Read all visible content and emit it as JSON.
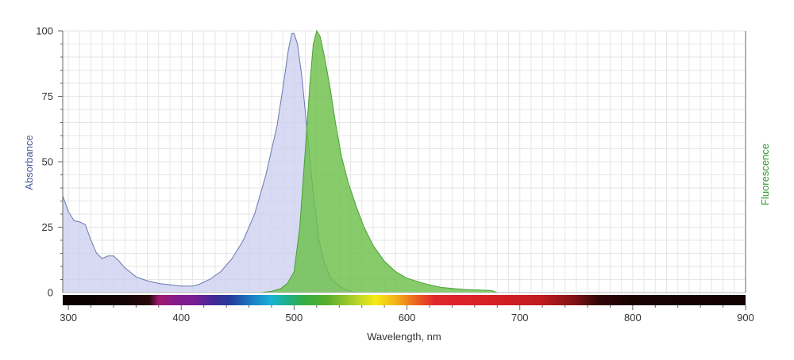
{
  "chart_data": {
    "type": "area",
    "xlabel": "Wavelength, nm",
    "ylabel_left": "Absorbance",
    "ylabel_right": "Fluorescence",
    "xlim": [
      295,
      900
    ],
    "ylim": [
      0,
      100
    ],
    "x_ticks": [
      300,
      400,
      500,
      600,
      700,
      800,
      900
    ],
    "y_ticks": [
      0,
      25,
      50,
      75,
      100
    ],
    "grid": true,
    "series": [
      {
        "name": "Absorbance",
        "color": "#5a6aa8",
        "fill": "#c9cdee",
        "points": [
          [
            295,
            37
          ],
          [
            300,
            31
          ],
          [
            305,
            27.5
          ],
          [
            310,
            27
          ],
          [
            315,
            26
          ],
          [
            320,
            20
          ],
          [
            325,
            15
          ],
          [
            330,
            13
          ],
          [
            335,
            14
          ],
          [
            340,
            14
          ],
          [
            345,
            12
          ],
          [
            350,
            9.5
          ],
          [
            360,
            6
          ],
          [
            370,
            4.5
          ],
          [
            380,
            3.5
          ],
          [
            390,
            3
          ],
          [
            400,
            2.5
          ],
          [
            410,
            2.5
          ],
          [
            415,
            3
          ],
          [
            425,
            5
          ],
          [
            435,
            8
          ],
          [
            445,
            13
          ],
          [
            455,
            20
          ],
          [
            465,
            30
          ],
          [
            475,
            45
          ],
          [
            485,
            64
          ],
          [
            490,
            78
          ],
          [
            495,
            93
          ],
          [
            498,
            99
          ],
          [
            500,
            99
          ],
          [
            503,
            95
          ],
          [
            507,
            82
          ],
          [
            512,
            60
          ],
          [
            517,
            38
          ],
          [
            522,
            20
          ],
          [
            527,
            11
          ],
          [
            532,
            6
          ],
          [
            537,
            3.5
          ],
          [
            542,
            2
          ],
          [
            547,
            1
          ],
          [
            552,
            0.3
          ],
          [
            555,
            0
          ]
        ]
      },
      {
        "name": "Fluorescence",
        "color": "#3e9a2e",
        "fill": "#6cc04a",
        "points": [
          [
            470,
            0
          ],
          [
            480,
            0.5
          ],
          [
            488,
            1.5
          ],
          [
            494,
            3.5
          ],
          [
            500,
            8
          ],
          [
            505,
            25
          ],
          [
            510,
            55
          ],
          [
            514,
            80
          ],
          [
            517,
            95
          ],
          [
            520,
            100
          ],
          [
            523,
            98
          ],
          [
            527,
            90
          ],
          [
            532,
            78
          ],
          [
            537,
            64
          ],
          [
            542,
            52
          ],
          [
            548,
            42
          ],
          [
            555,
            33
          ],
          [
            562,
            25
          ],
          [
            570,
            18
          ],
          [
            580,
            12
          ],
          [
            590,
            8
          ],
          [
            600,
            5.5
          ],
          [
            615,
            3.5
          ],
          [
            630,
            2
          ],
          [
            650,
            1.2
          ],
          [
            675,
            0.8
          ],
          [
            680,
            0
          ]
        ]
      }
    ],
    "spectrum_bar": {
      "stops": [
        [
          295,
          "#080000"
        ],
        [
          350,
          "#140405"
        ],
        [
          372,
          "#28090d"
        ],
        [
          380,
          "#a1196f"
        ],
        [
          392,
          "#8a1a86"
        ],
        [
          412,
          "#771d95"
        ],
        [
          430,
          "#3f2b96"
        ],
        [
          443,
          "#263a9b"
        ],
        [
          460,
          "#1b75c2"
        ],
        [
          480,
          "#18b4d4"
        ],
        [
          495,
          "#1fae82"
        ],
        [
          510,
          "#38ad3f"
        ],
        [
          530,
          "#5aaf2b"
        ],
        [
          555,
          "#b5d22a"
        ],
        [
          572,
          "#f6ea16"
        ],
        [
          590,
          "#f5b317"
        ],
        [
          610,
          "#ea5a20"
        ],
        [
          625,
          "#df262c"
        ],
        [
          680,
          "#d51e25"
        ],
        [
          720,
          "#bf1a20"
        ],
        [
          750,
          "#7a1214"
        ],
        [
          770,
          "#300607"
        ],
        [
          800,
          "#1a0303"
        ],
        [
          900,
          "#120202"
        ]
      ]
    }
  }
}
